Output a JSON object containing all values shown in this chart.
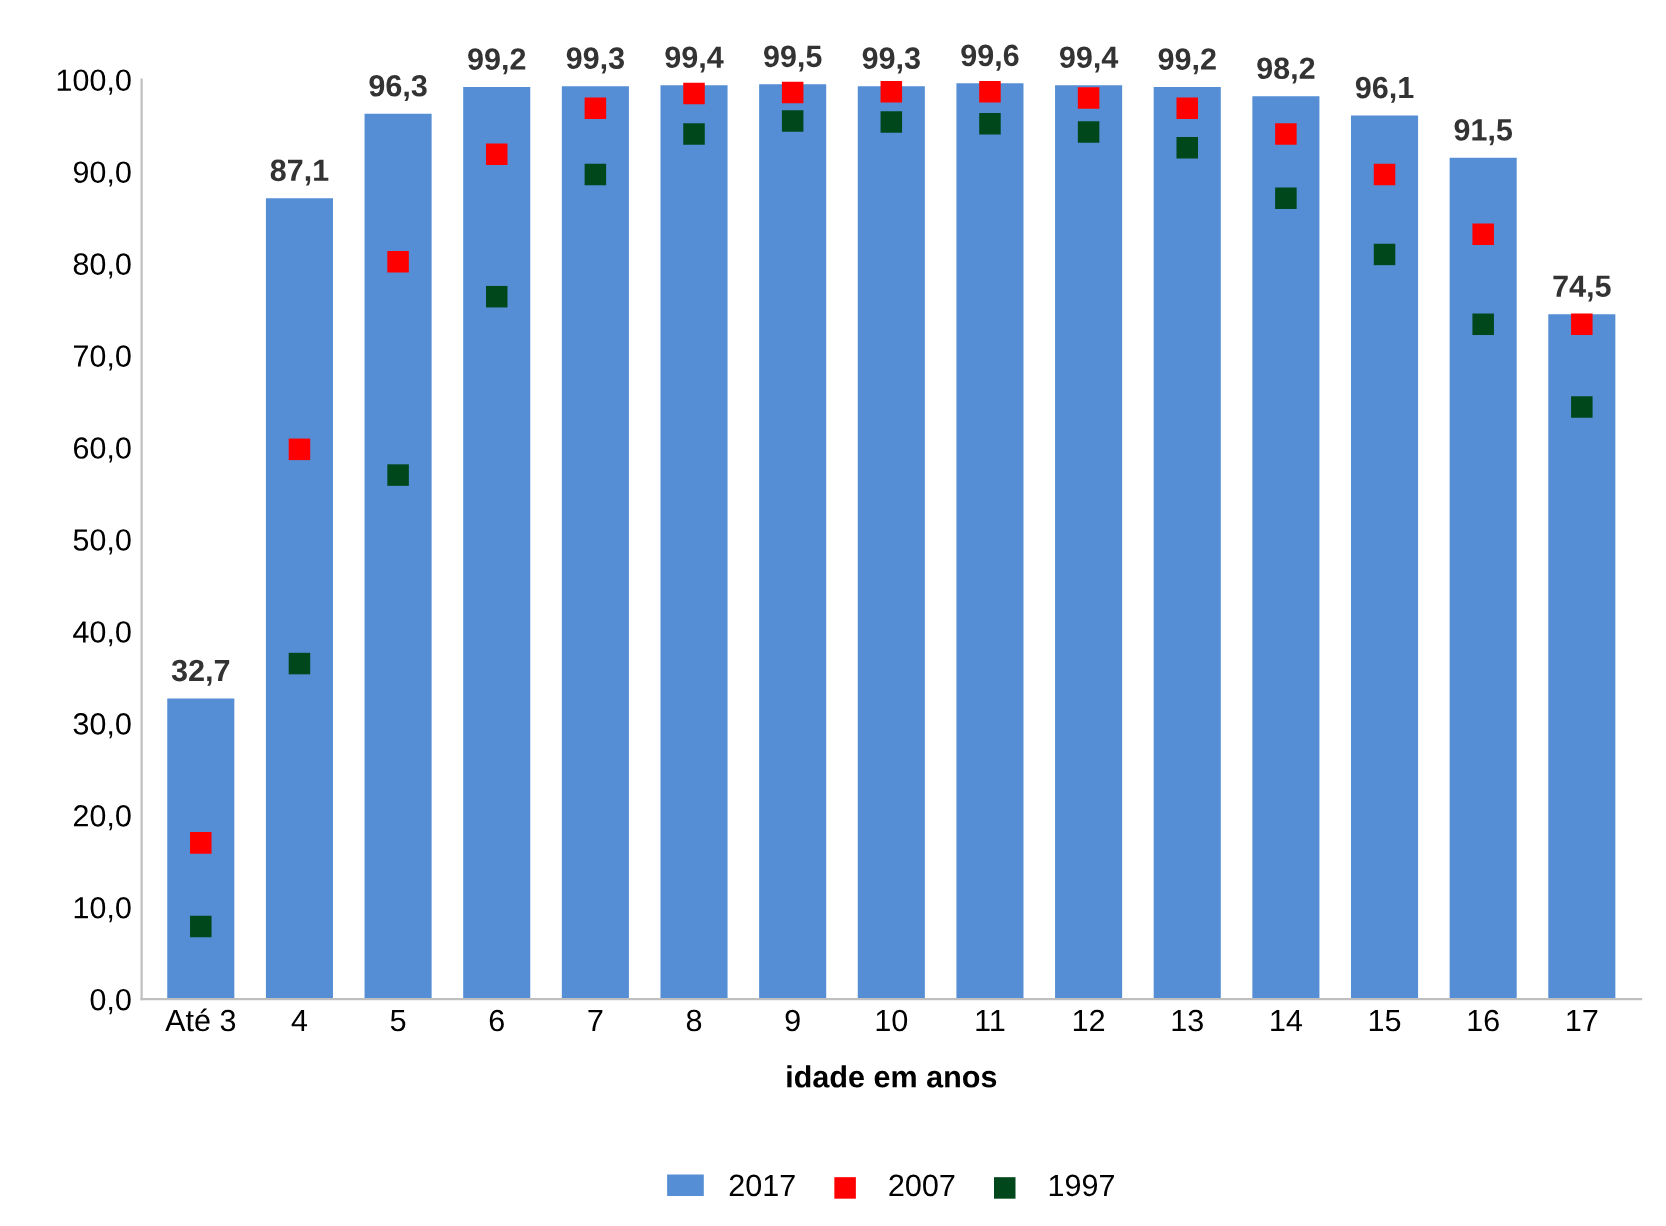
{
  "chart_data": {
    "type": "bar",
    "xlabel": "idade em anos",
    "categories": [
      "Até 3",
      "4",
      "5",
      "6",
      "7",
      "8",
      "9",
      "10",
      "11",
      "12",
      "13",
      "14",
      "15",
      "16",
      "17"
    ],
    "ylim": [
      0,
      100
    ],
    "yticks": [
      {
        "value": 0,
        "label": "0,0"
      },
      {
        "value": 10,
        "label": "10,0"
      },
      {
        "value": 20,
        "label": "20,0"
      },
      {
        "value": 30,
        "label": "30,0"
      },
      {
        "value": 40,
        "label": "40,0"
      },
      {
        "value": 50,
        "label": "50,0"
      },
      {
        "value": 60,
        "label": "60,0"
      },
      {
        "value": 70,
        "label": "70,0"
      },
      {
        "value": 80,
        "label": "80,0"
      },
      {
        "value": 90,
        "label": "90,0"
      },
      {
        "value": 100,
        "label": "100,0"
      }
    ],
    "grid": false,
    "legend": "bottom",
    "series": [
      {
        "name": "2017",
        "color": "#558ed5",
        "values": [
          32.7,
          87.1,
          96.3,
          99.2,
          99.3,
          99.4,
          99.5,
          99.3,
          99.6,
          99.4,
          99.2,
          98.2,
          96.1,
          91.5,
          74.5
        ],
        "value_labels": [
          "32,7",
          "87,1",
          "96,3",
          "99,2",
          "99,3",
          "99,4",
          "99,5",
          "99,3",
          "99,6",
          "99,4",
          "99,2",
          "98,2",
          "96,1",
          "91,5",
          "74,5"
        ]
      },
      {
        "name": "2007",
        "type": "scatter",
        "marker": "square",
        "color": "#ff0000",
        "values": [
          17.0,
          59.8,
          80.2,
          91.9,
          96.9,
          98.5,
          98.6,
          98.7,
          98.7,
          98.0,
          96.9,
          94.1,
          89.7,
          83.2,
          73.4
        ]
      },
      {
        "name": "1997",
        "type": "scatter",
        "marker": "square",
        "color": "#00471b",
        "values": [
          7.9,
          36.5,
          57.0,
          76.4,
          89.7,
          94.1,
          95.5,
          95.4,
          95.2,
          94.3,
          92.6,
          87.1,
          81.0,
          73.4,
          64.4
        ]
      }
    ]
  }
}
